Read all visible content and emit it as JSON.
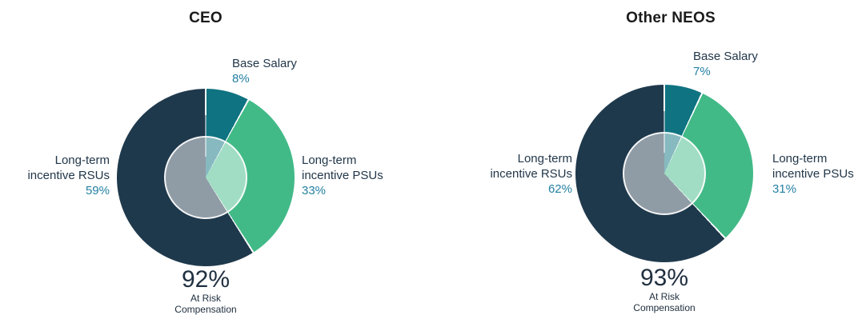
{
  "styles": {
    "background": "#ffffff",
    "title_color": "#1b1b1b",
    "label_color": "#22374a",
    "pct_color": "#2480a2",
    "big_pct_color": "#203040",
    "slice_separator_color": "#ffffff"
  },
  "chart_data": [
    {
      "type": "pie",
      "title": "CEO",
      "start_angle": "12-oclock",
      "direction": "clockwise",
      "slices": [
        {
          "name": "Base Salary",
          "value": 8,
          "pct_label": "8%",
          "label_lines": [
            "Base Salary"
          ],
          "color": "#0f7381"
        },
        {
          "name": "Long-term incentive PSUs",
          "value": 33,
          "pct_label": "33%",
          "label_lines": [
            "Long-term",
            "incentive PSUs"
          ],
          "color": "#42ba88"
        },
        {
          "name": "Long-term incentive RSUs",
          "value": 59,
          "pct_label": "59%",
          "label_lines": [
            "Long-term",
            "incentive RSUs"
          ],
          "color": "#1f394c"
        }
      ],
      "center_overlay": {
        "fill": "rgba(255,255,255,0.5)",
        "radius_ratio": 0.47
      },
      "annotation": {
        "big": "92%",
        "lines": [
          "At Risk",
          "Compensation"
        ]
      }
    },
    {
      "type": "pie",
      "title": "Other NEOS",
      "start_angle": "12-oclock",
      "direction": "clockwise",
      "slices": [
        {
          "name": "Base Salary",
          "value": 7,
          "pct_label": "7%",
          "label_lines": [
            "Base Salary"
          ],
          "color": "#0f7381"
        },
        {
          "name": "Long-term incentive PSUs",
          "value": 31,
          "pct_label": "31%",
          "label_lines": [
            "Long-term",
            "incentive PSUs"
          ],
          "color": "#42ba88"
        },
        {
          "name": "Long-term incentive RSUs",
          "value": 62,
          "pct_label": "62%",
          "label_lines": [
            "Long-term",
            "incentive RSUs"
          ],
          "color": "#1f394c"
        }
      ],
      "center_overlay": {
        "fill": "rgba(255,255,255,0.5)",
        "radius_ratio": 0.47
      },
      "annotation": {
        "big": "93%",
        "lines": [
          "At Risk",
          "Compensation"
        ]
      }
    }
  ]
}
